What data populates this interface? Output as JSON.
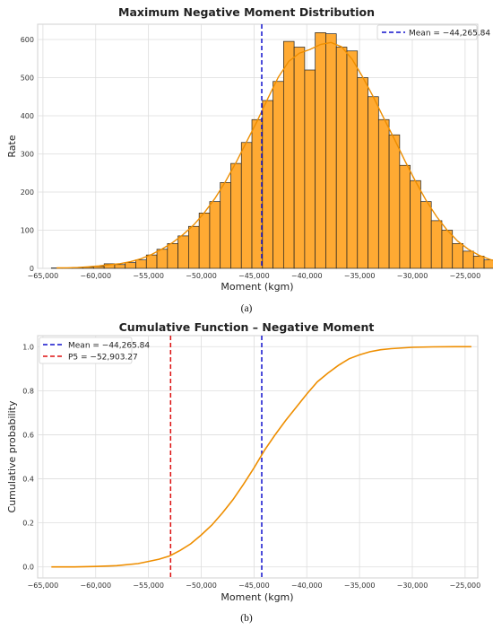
{
  "colors": {
    "bar_fill": "#FFAA33",
    "bar_edge": "#222222",
    "kde_line": "#EE8E00",
    "mean_line": "#1010CC",
    "p5_line": "#DD1111",
    "grid": "#DDDDDD",
    "frame": "#D0D0D0"
  },
  "chart_data": [
    {
      "type": "bar",
      "title": "Maximum Negative Moment Distribution",
      "xlabel": "Moment (kgm)",
      "ylabel": "Rate",
      "caption": "(a)",
      "xlim": [
        -65500,
        -23800
      ],
      "ylim": [
        0,
        640
      ],
      "xticks": [
        -65000,
        -60000,
        -55000,
        -50000,
        -45000,
        -40000,
        -35000,
        -30000,
        -25000
      ],
      "xtick_labels": [
        "−65,000",
        "−60,000",
        "−55,000",
        "−50,000",
        "−45,000",
        "−40,000",
        "−35,000",
        "−30,000",
        "−25,000"
      ],
      "yticks": [
        0,
        100,
        200,
        300,
        400,
        500,
        600
      ],
      "ytick_labels": [
        "0",
        "100",
        "200",
        "300",
        "400",
        "500",
        "600"
      ],
      "bin_start": -64200,
      "bin_width": 1000,
      "values": [
        1,
        1,
        2,
        3,
        5,
        12,
        10,
        15,
        22,
        35,
        50,
        65,
        85,
        110,
        145,
        175,
        225,
        275,
        330,
        390,
        440,
        490,
        595,
        580,
        520,
        618,
        615,
        580,
        570,
        500,
        450,
        390,
        350,
        270,
        230,
        175,
        125,
        100,
        65,
        45,
        32,
        22,
        15,
        8,
        5,
        3,
        2,
        1,
        1,
        1,
        0
      ],
      "mean": -44265.84,
      "legend": [
        "Mean = −44,265.84"
      ],
      "legend_position": "top-right",
      "grid": true
    },
    {
      "type": "line",
      "title": "Cumulative Function – Negative Moment",
      "xlabel": "Moment (kgm)",
      "ylabel": "Cumulative probability",
      "caption": "(b)",
      "xlim": [
        -65500,
        -23800
      ],
      "ylim": [
        -0.05,
        1.05
      ],
      "xticks": [
        -65000,
        -60000,
        -55000,
        -50000,
        -45000,
        -40000,
        -35000,
        -30000,
        -25000
      ],
      "xtick_labels": [
        "−65,000",
        "−60,000",
        "−55,000",
        "−50,000",
        "−45,000",
        "−40,000",
        "−35,000",
        "−30,000",
        "−25,000"
      ],
      "yticks": [
        0,
        0.2,
        0.4,
        0.6,
        0.8,
        1.0
      ],
      "ytick_labels": [
        "0.0",
        "0.2",
        "0.4",
        "0.6",
        "0.8",
        "1.0"
      ],
      "x": [
        -64200,
        -62000,
        -60000,
        -58000,
        -56000,
        -55000,
        -54000,
        -53000,
        -52000,
        -51000,
        -50000,
        -49000,
        -48000,
        -47000,
        -46000,
        -45000,
        -44000,
        -43000,
        -42000,
        -41000,
        -40000,
        -39000,
        -38000,
        -37000,
        -36000,
        -35000,
        -34000,
        -33000,
        -32000,
        -30000,
        -28000,
        -26000,
        -24400
      ],
      "y": [
        0.0,
        0.0,
        0.002,
        0.006,
        0.015,
        0.025,
        0.035,
        0.05,
        0.075,
        0.105,
        0.145,
        0.19,
        0.245,
        0.305,
        0.375,
        0.45,
        0.53,
        0.6,
        0.665,
        0.725,
        0.785,
        0.84,
        0.88,
        0.915,
        0.945,
        0.963,
        0.977,
        0.986,
        0.991,
        0.997,
        0.999,
        1.0,
        1.0
      ],
      "mean": -44265.84,
      "p5": -52903.27,
      "legend": [
        "Mean = −44,265.84",
        "P5 = −52,903.27"
      ],
      "legend_position": "top-left",
      "grid": true
    }
  ]
}
